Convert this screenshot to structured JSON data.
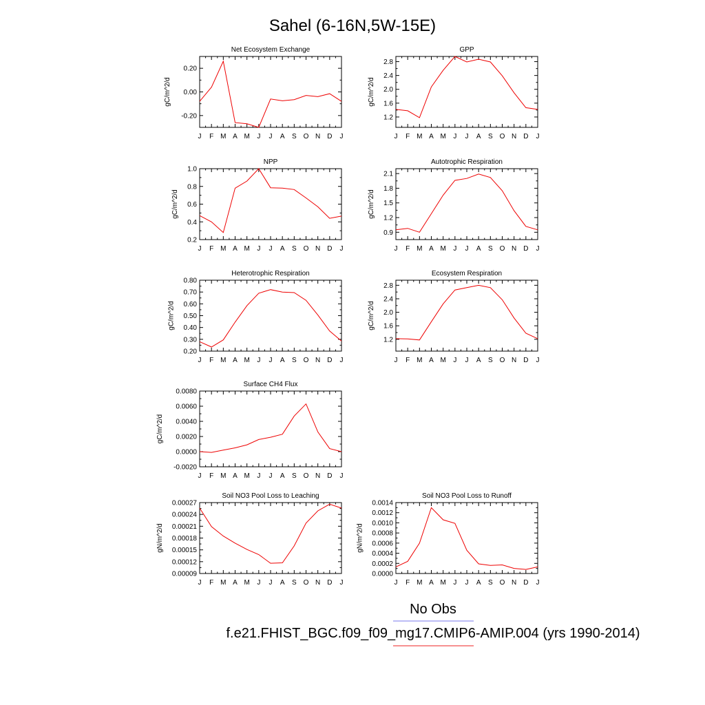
{
  "figure": {
    "title": "Sahel (6-16N,5W-15E)",
    "legend": [
      {
        "label": "No Obs",
        "color": "#7777ee"
      },
      {
        "label": "f.e21.FHIST_BGC.f09_f09_mg17.CMIP6-AMIP.004 (yrs 1990-2014)",
        "color": "#ee2222"
      }
    ]
  },
  "chart_data": [
    {
      "type": "line",
      "title": "Net Ecosystem Exchange",
      "ylabel": "gC/m^2/d",
      "categories": [
        "J",
        "F",
        "M",
        "A",
        "M",
        "J",
        "J",
        "A",
        "S",
        "O",
        "N",
        "D",
        "J"
      ],
      "yticks": [
        -0.2,
        0.0,
        0.2
      ],
      "ytick_labels": [
        "-0.20",
        "0.00",
        "0.20"
      ],
      "ylim": [
        -0.3,
        0.3
      ],
      "series": [
        {
          "color": "#ee0000",
          "values": [
            -0.08,
            0.04,
            0.26,
            -0.26,
            -0.27,
            -0.3,
            -0.06,
            -0.075,
            -0.065,
            -0.03,
            -0.04,
            -0.015,
            -0.08
          ]
        }
      ]
    },
    {
      "type": "line",
      "title": "GPP",
      "ylabel": "gC/m^2/d",
      "categories": [
        "J",
        "F",
        "M",
        "A",
        "M",
        "J",
        "J",
        "A",
        "S",
        "O",
        "N",
        "D",
        "J"
      ],
      "yticks": [
        1.2,
        1.6,
        2.0,
        2.4,
        2.8
      ],
      "ytick_labels": [
        "1.2",
        "1.6",
        "2.0",
        "2.4",
        "2.8"
      ],
      "ylim": [
        0.9,
        2.95
      ],
      "series": [
        {
          "color": "#ee0000",
          "values": [
            1.42,
            1.38,
            1.18,
            2.07,
            2.55,
            2.95,
            2.79,
            2.87,
            2.79,
            2.39,
            1.9,
            1.47,
            1.42
          ]
        }
      ]
    },
    {
      "type": "line",
      "title": "NPP",
      "ylabel": "gC/m^2/d",
      "categories": [
        "J",
        "F",
        "M",
        "A",
        "M",
        "J",
        "J",
        "A",
        "S",
        "O",
        "N",
        "D",
        "J"
      ],
      "yticks": [
        0.2,
        0.4,
        0.6,
        0.8,
        1.0
      ],
      "ytick_labels": [
        "0.2",
        "0.4",
        "0.6",
        "0.8",
        "1.0"
      ],
      "ylim": [
        0.2,
        1.0
      ],
      "series": [
        {
          "color": "#ee0000",
          "values": [
            0.47,
            0.4,
            0.28,
            0.78,
            0.86,
            1.0,
            0.785,
            0.78,
            0.765,
            0.67,
            0.57,
            0.44,
            0.465
          ]
        }
      ]
    },
    {
      "type": "line",
      "title": "Autotrophic Respiration",
      "ylabel": "gC/m^2/d",
      "categories": [
        "J",
        "F",
        "M",
        "A",
        "M",
        "J",
        "J",
        "A",
        "S",
        "O",
        "N",
        "D",
        "J"
      ],
      "yticks": [
        0.9,
        1.2,
        1.5,
        1.8,
        2.1
      ],
      "ytick_labels": [
        "0.9",
        "1.2",
        "1.5",
        "1.8",
        "2.1"
      ],
      "ylim": [
        0.75,
        2.2
      ],
      "series": [
        {
          "color": "#ee0000",
          "values": [
            0.95,
            0.98,
            0.9,
            1.28,
            1.66,
            1.96,
            2.0,
            2.09,
            2.02,
            1.75,
            1.34,
            1.02,
            0.95
          ]
        }
      ]
    },
    {
      "type": "line",
      "title": "Heterotrophic Respiration",
      "ylabel": "gC/m^2/d",
      "categories": [
        "J",
        "F",
        "M",
        "A",
        "M",
        "J",
        "J",
        "A",
        "S",
        "O",
        "N",
        "D",
        "J"
      ],
      "yticks": [
        0.2,
        0.3,
        0.4,
        0.5,
        0.6,
        0.7,
        0.8
      ],
      "ytick_labels": [
        "0.20",
        "0.30",
        "0.40",
        "0.50",
        "0.60",
        "0.70",
        "0.80"
      ],
      "ylim": [
        0.2,
        0.8
      ],
      "series": [
        {
          "color": "#ee0000",
          "values": [
            0.28,
            0.235,
            0.295,
            0.445,
            0.585,
            0.69,
            0.72,
            0.7,
            0.695,
            0.63,
            0.505,
            0.37,
            0.285
          ]
        }
      ]
    },
    {
      "type": "line",
      "title": "Ecosystem Respiration",
      "ylabel": "gC/m^2/d",
      "categories": [
        "J",
        "F",
        "M",
        "A",
        "M",
        "J",
        "J",
        "A",
        "S",
        "O",
        "N",
        "D",
        "J"
      ],
      "yticks": [
        1.2,
        1.6,
        2.0,
        2.4,
        2.8
      ],
      "ytick_labels": [
        "1.2",
        "1.6",
        "2.0",
        "2.4",
        "2.8"
      ],
      "ylim": [
        0.85,
        2.95
      ],
      "series": [
        {
          "color": "#ee0000",
          "values": [
            1.22,
            1.21,
            1.18,
            1.72,
            2.25,
            2.66,
            2.73,
            2.8,
            2.73,
            2.37,
            1.83,
            1.38,
            1.22
          ]
        }
      ]
    },
    {
      "type": "line",
      "title": "Surface CH4 Flux",
      "ylabel": "gC/m^2/d",
      "categories": [
        "J",
        "F",
        "M",
        "A",
        "M",
        "J",
        "J",
        "A",
        "S",
        "O",
        "N",
        "D",
        "J"
      ],
      "yticks": [
        -0.002,
        0.0,
        0.002,
        0.004,
        0.006,
        0.008
      ],
      "ytick_labels": [
        "-0.0020",
        "0.0000",
        "0.0020",
        "0.0040",
        "0.0060",
        "0.0080"
      ],
      "ylim": [
        -0.002,
        0.008
      ],
      "series": [
        {
          "color": "#ee0000",
          "values": [
            0.0,
            -0.0001,
            0.0002,
            0.0005,
            0.0009,
            0.0016,
            0.0019,
            0.0023,
            0.0047,
            0.0063,
            0.0026,
            0.0004,
            0.0
          ]
        }
      ]
    },
    {
      "type": "line",
      "title": "Soil NO3 Pool Loss to Leaching",
      "ylabel": "gN/m^2/d",
      "categories": [
        "J",
        "F",
        "M",
        "A",
        "M",
        "J",
        "J",
        "A",
        "S",
        "O",
        "N",
        "D",
        "J"
      ],
      "yticks": [
        9e-05,
        0.00012,
        0.00015,
        0.00018,
        0.00021,
        0.00024,
        0.00027
      ],
      "ytick_labels": [
        "0.00009",
        "0.00012",
        "0.00015",
        "0.00018",
        "0.00021",
        "0.00024",
        "0.00027"
      ],
      "ylim": [
        9e-05,
        0.00027
      ],
      "series": [
        {
          "color": "#ee0000",
          "values": [
            0.000256,
            0.000209,
            0.000185,
            0.000167,
            0.000151,
            0.000138,
            0.000116,
            0.000117,
            0.00016,
            0.000218,
            0.000249,
            0.000266,
            0.000256
          ]
        }
      ]
    },
    {
      "type": "line",
      "title": "Soil NO3 Pool Loss to Runoff",
      "ylabel": "gN/m^2/d",
      "categories": [
        "J",
        "F",
        "M",
        "A",
        "M",
        "J",
        "J",
        "A",
        "S",
        "O",
        "N",
        "D",
        "J"
      ],
      "yticks": [
        0.0,
        0.0002,
        0.0004,
        0.0006,
        0.0008,
        0.001,
        0.0012,
        0.0014
      ],
      "ytick_labels": [
        "0.0000",
        "0.0002",
        "0.0004",
        "0.0006",
        "0.0008",
        "0.0010",
        "0.0012",
        "0.0014"
      ],
      "ylim": [
        0.0,
        0.0014
      ],
      "series": [
        {
          "color": "#ee0000",
          "values": [
            0.00013,
            0.00024,
            0.0006,
            0.0013,
            0.00106,
            0.00099,
            0.00046,
            0.00019,
            0.00016,
            0.00017,
            0.0001,
            8e-05,
            0.00013
          ]
        }
      ]
    }
  ]
}
